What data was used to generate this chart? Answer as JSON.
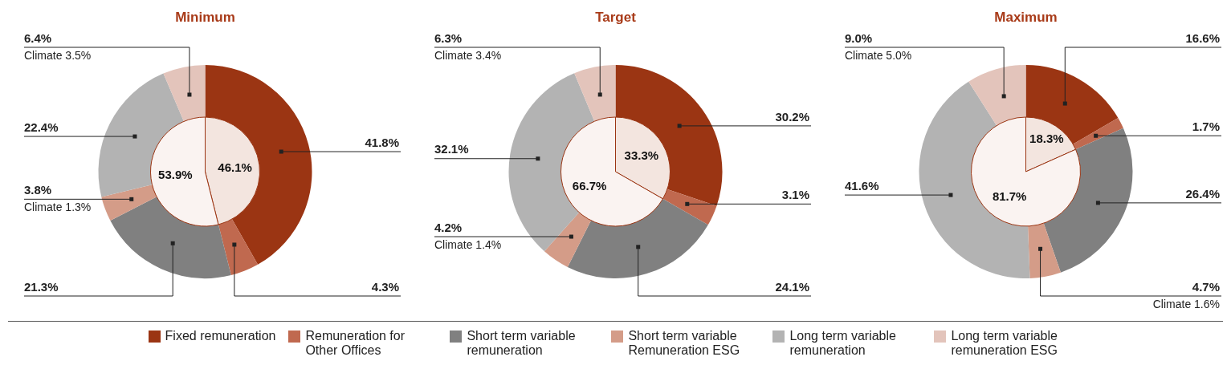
{
  "chart_data": [
    {
      "type": "donut",
      "title": "Minimum",
      "colors": [
        "#9b3513",
        "#c0694f",
        "#808080",
        "#d49c88",
        "#b3b3b3",
        "#e3c4bb"
      ],
      "values": [
        41.8,
        4.3,
        21.3,
        3.8,
        22.4,
        6.4
      ],
      "value_labels": [
        "41.8%",
        "4.3%",
        "21.3%",
        "3.8%\nClimate 1.3%",
        "22.4%",
        "6.4%\nClimate 3.5%"
      ]
    },
    {
      "type": "pie",
      "categories": [
        null,
        null
      ],
      "colors": [
        "#f3e5df",
        "#faf3f1"
      ],
      "values": [
        46.1,
        53.9
      ],
      "value_labels": [
        "46.1%",
        "53.9%"
      ]
    },
    {
      "type": "donut",
      "title": "Target",
      "legend": "bottom",
      "categories": [
        "Fixed remuneration",
        "Remuneration for Other Offices",
        "Short term variable remuneration",
        "Short term variable Remuneration ESG",
        "Long term variable remuneration",
        "Long term variable remuneration ESG"
      ],
      "colors": [
        "#9b3513",
        "#c0694f",
        "#808080",
        "#d49c88",
        "#b3b3b3",
        "#e3c4bb"
      ],
      "values": [
        30.2,
        3.1,
        24.1,
        4.2,
        32.1,
        6.3
      ],
      "value_labels": [
        "30.2%",
        "3.1%",
        "24.1%",
        "4.2%\nClimate 1.4%",
        "32.1%",
        "6.3%\nClimate 3.4%"
      ]
    },
    {
      "type": "pie",
      "categories": [
        null,
        null
      ],
      "colors": [
        "#f3e5df",
        "#faf3f1"
      ],
      "values": [
        33.3,
        66.7
      ],
      "value_labels": [
        "33.3%",
        "66.7%"
      ]
    },
    {
      "type": "donut",
      "title": "Maximum",
      "colors": [
        "#9b3513",
        "#c0694f",
        "#808080",
        "#d49c88",
        "#b3b3b3",
        "#e3c4bb"
      ],
      "values": [
        16.6,
        1.7,
        26.4,
        4.7,
        41.6,
        9.0
      ],
      "value_labels": [
        "16.6%",
        "1.7%",
        "26.4%",
        "4.7%\nClimate 1.6%",
        "41.6%",
        "9.0%\nClimate 5.0%"
      ]
    },
    {
      "type": "pie",
      "categories": [
        null,
        null
      ],
      "colors": [
        "#f3e5df",
        "#faf3f1"
      ],
      "values": [
        18.3,
        81.7
      ],
      "value_labels": [
        "18.3%",
        "81.7%"
      ]
    }
  ]
}
